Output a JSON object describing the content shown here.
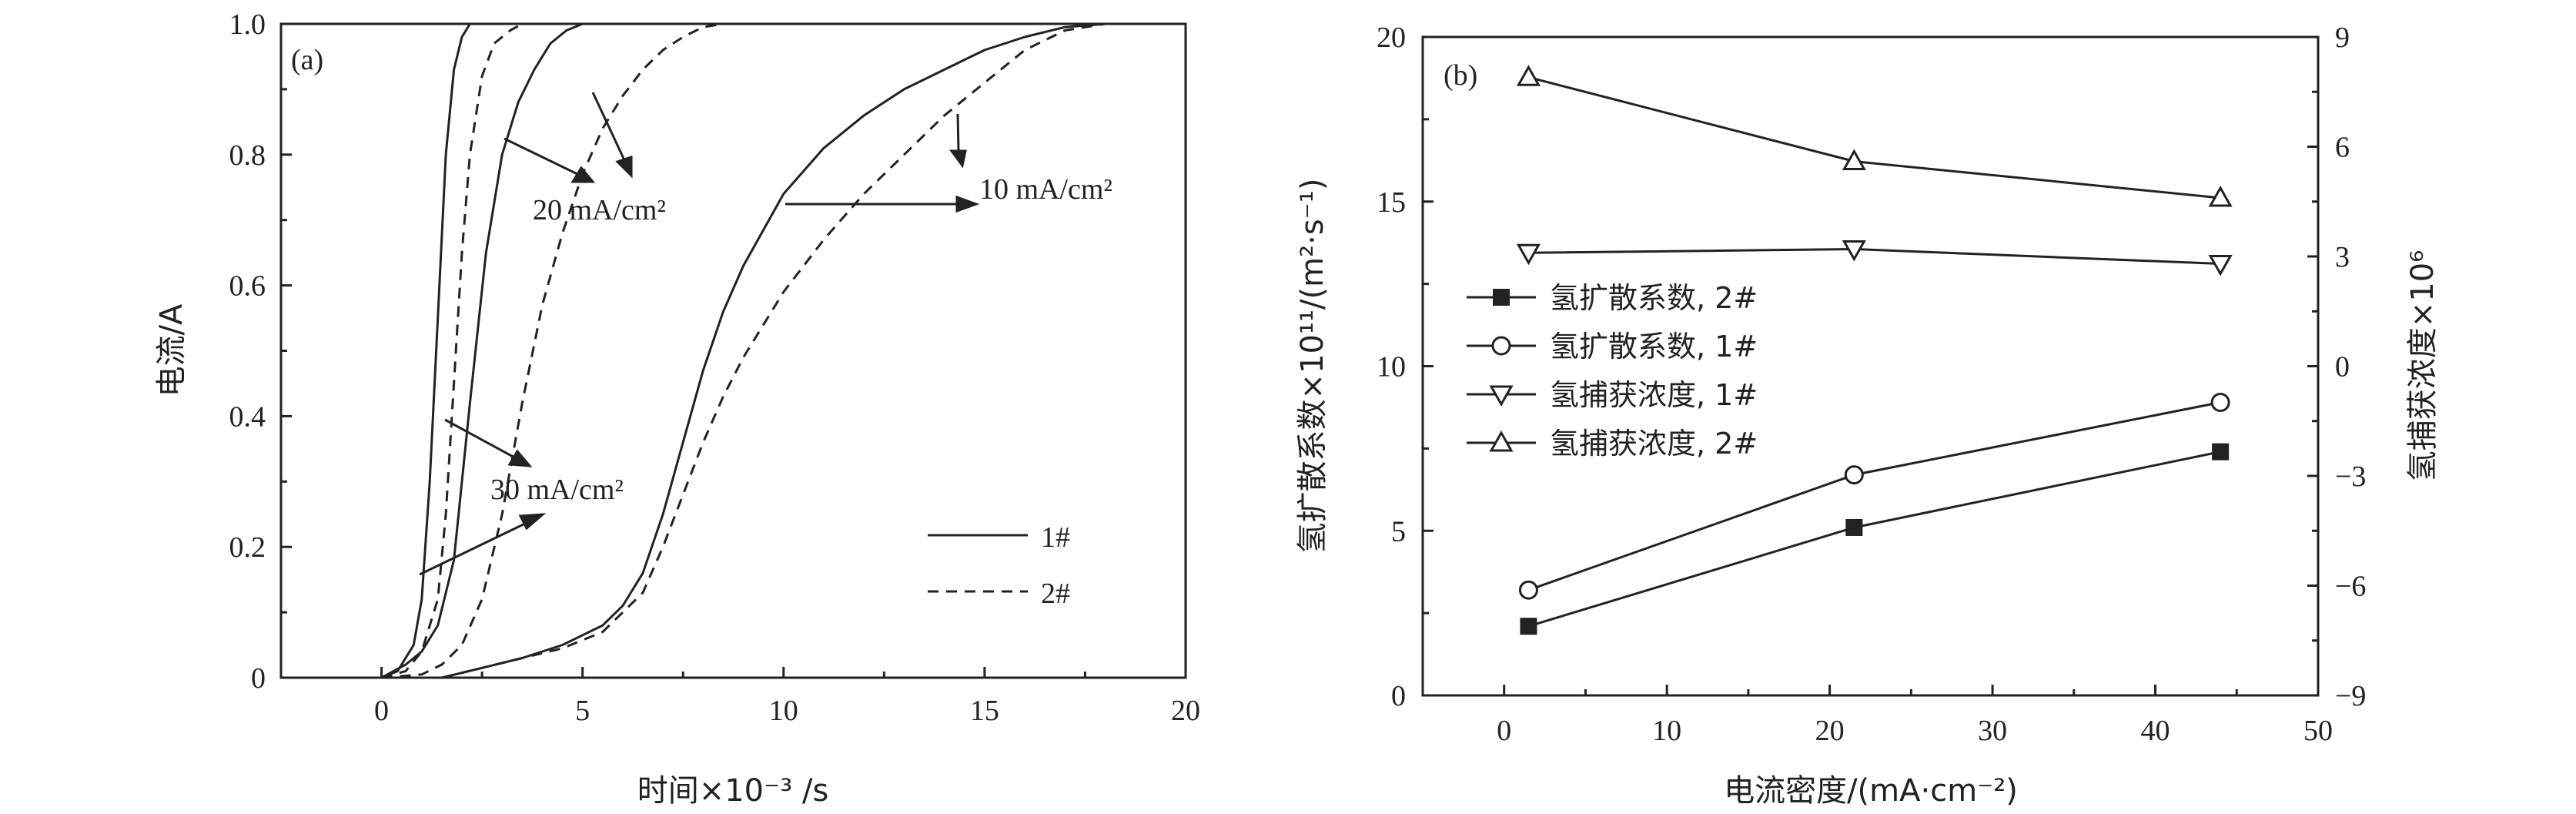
{
  "chart_data": [
    {
      "panel": "(a)",
      "type": "line",
      "xlabel": "时间×10⁻³ /s",
      "ylabel": "电流/A",
      "xlim": [
        -2.5,
        20
      ],
      "ylim": [
        0,
        1.0
      ],
      "xticks": [
        "0",
        "5",
        "10",
        "15",
        "20"
      ],
      "yticks": [
        "0",
        "0.2",
        "0.4",
        "0.6",
        "0.8",
        "1.0"
      ],
      "legend": [
        {
          "label": "1#",
          "style": "solid"
        },
        {
          "label": "2#",
          "style": "dashed"
        }
      ],
      "annotations": [
        "20 mA/cm²",
        "30 mA/cm²",
        "10 mA/cm²"
      ],
      "series": [
        {
          "name": "1#",
          "style": "solid",
          "group": "30 mA/cm²",
          "x": [
            0,
            0.4,
            0.8,
            1.0,
            1.2,
            1.4,
            1.6,
            1.8,
            2.0,
            2.2,
            2.4,
            2.6
          ],
          "y": [
            0,
            0.01,
            0.05,
            0.12,
            0.3,
            0.55,
            0.8,
            0.93,
            0.98,
            1.0,
            1.0,
            1.0
          ]
        },
        {
          "name": "2#",
          "style": "dashed",
          "group": "30 mA/cm²",
          "x": [
            0,
            0.6,
            1.0,
            1.4,
            1.6,
            1.8,
            2.0,
            2.2,
            2.5,
            2.8,
            3.2,
            3.5,
            4.0
          ],
          "y": [
            0,
            0.01,
            0.04,
            0.12,
            0.25,
            0.45,
            0.65,
            0.8,
            0.92,
            0.97,
            0.99,
            1.0,
            1.0
          ]
        },
        {
          "name": "1#",
          "style": "solid",
          "group": "20 mA/cm²",
          "x": [
            0,
            0.6,
            1.0,
            1.4,
            1.8,
            2.2,
            2.6,
            3.0,
            3.4,
            3.8,
            4.2,
            4.6,
            5.0
          ],
          "y": [
            0,
            0.02,
            0.04,
            0.08,
            0.18,
            0.42,
            0.65,
            0.8,
            0.88,
            0.93,
            0.97,
            0.99,
            1.0
          ]
        },
        {
          "name": "2#",
          "style": "dashed",
          "group": "20 mA/cm²",
          "x": [
            0,
            1.0,
            1.5,
            2.0,
            2.5,
            3.0,
            3.5,
            4.0,
            4.5,
            5.0,
            5.5,
            6.0,
            6.5,
            7.0,
            7.5,
            8.0,
            8.5
          ],
          "y": [
            0,
            0.005,
            0.02,
            0.05,
            0.12,
            0.25,
            0.42,
            0.57,
            0.68,
            0.77,
            0.84,
            0.89,
            0.93,
            0.96,
            0.98,
            0.995,
            1.0
          ]
        },
        {
          "name": "1#",
          "style": "solid",
          "group": "10 mA/cm²",
          "x": [
            1.5,
            2.5,
            3.5,
            4.5,
            5.5,
            6.0,
            6.5,
            7.0,
            7.5,
            8.0,
            8.5,
            9.0,
            10.0,
            11.0,
            12.0,
            13.0,
            14.0,
            15.0,
            16.0,
            17.0,
            18.0
          ],
          "y": [
            0,
            0.015,
            0.03,
            0.05,
            0.08,
            0.11,
            0.16,
            0.25,
            0.36,
            0.47,
            0.56,
            0.63,
            0.74,
            0.81,
            0.86,
            0.9,
            0.93,
            0.96,
            0.98,
            0.995,
            1.0
          ]
        },
        {
          "name": "2#",
          "style": "dashed",
          "group": "10 mA/cm²",
          "x": [
            1.5,
            2.5,
            3.5,
            4.5,
            5.5,
            6.5,
            7.0,
            7.5,
            8.0,
            8.5,
            9.0,
            10.0,
            11.0,
            12.0,
            13.0,
            14.0,
            15.0,
            16.0,
            17.0,
            18.0
          ],
          "y": [
            0,
            0.015,
            0.03,
            0.045,
            0.07,
            0.13,
            0.2,
            0.28,
            0.36,
            0.43,
            0.49,
            0.59,
            0.67,
            0.74,
            0.8,
            0.86,
            0.91,
            0.96,
            0.99,
            1.0
          ]
        }
      ]
    },
    {
      "panel": "(b)",
      "type": "line",
      "xlabel": "电流密度/(mA·cm⁻²)",
      "ylabel": "氢扩散系数×10¹¹/(m²·s⁻¹)",
      "y2label": "氢捕获浓度×10⁶",
      "xlim": [
        -5,
        50
      ],
      "ylim": [
        0,
        20
      ],
      "y2lim": [
        -9,
        9
      ],
      "xticks": [
        "0",
        "10",
        "20",
        "30",
        "40",
        "50"
      ],
      "yticks": [
        "0",
        "5",
        "10",
        "15",
        "20"
      ],
      "y2ticks": [
        "−9",
        "−6",
        "−3",
        "0",
        "3",
        "6",
        "9"
      ],
      "x": [
        1.5,
        21.5,
        44
      ],
      "series": [
        {
          "name": "氢扩散系数, 2#",
          "marker": "filled-square",
          "axis": "left",
          "values": [
            2.1,
            5.1,
            7.4
          ]
        },
        {
          "name": "氢扩散系数, 1#",
          "marker": "open-circle",
          "axis": "left",
          "values": [
            3.2,
            6.7,
            8.9
          ]
        },
        {
          "name": "氢捕获浓度, 1#",
          "marker": "open-triangle-down",
          "axis": "right",
          "values": [
            3.1,
            3.2,
            2.8
          ]
        },
        {
          "name": "氢捕获浓度, 2#",
          "marker": "open-triangle-up",
          "axis": "right",
          "values": [
            7.9,
            5.6,
            4.6
          ]
        }
      ]
    }
  ]
}
